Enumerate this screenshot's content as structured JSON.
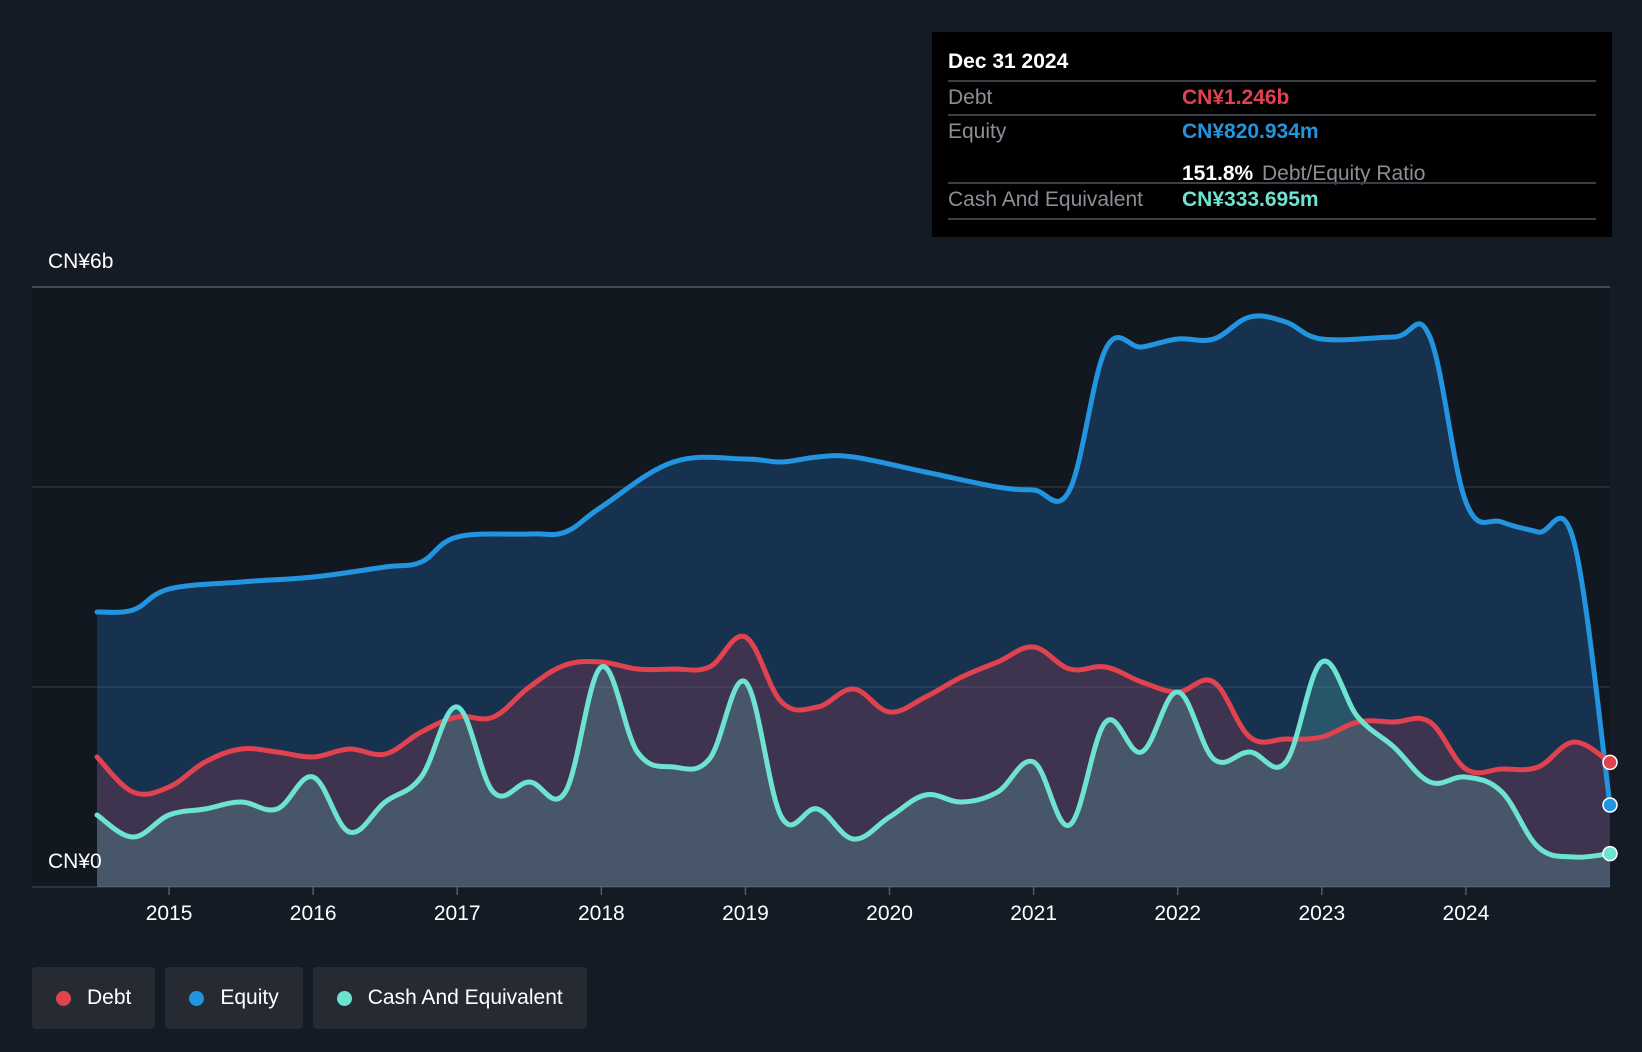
{
  "tooltip": {
    "date": "Dec 31 2024",
    "debt_label": "Debt",
    "debt_value": "CN¥1.246b",
    "equity_label": "Equity",
    "equity_value": "CN¥820.934m",
    "ratio_value": "151.8%",
    "ratio_label": "Debt/Equity Ratio",
    "cash_label": "Cash And Equivalent",
    "cash_value": "CN¥333.695m"
  },
  "legend": {
    "debt": "Debt",
    "equity": "Equity",
    "cash": "Cash And Equivalent"
  },
  "colors": {
    "debt": "#e0424f",
    "equity": "#2394df",
    "cash": "#6fe3d2",
    "background": "#151b24",
    "text_muted": "#8a8f96"
  },
  "chart_data": {
    "type": "area",
    "ylim": [
      0,
      6
    ],
    "y_unit": "CN¥ billions",
    "y_tick_labels": [
      "CN¥0",
      "CN¥6b"
    ],
    "x_tick_labels": [
      "2015",
      "2016",
      "2017",
      "2018",
      "2019",
      "2020",
      "2021",
      "2022",
      "2023",
      "2024"
    ],
    "xlim": [
      2014.5,
      2025.0
    ],
    "series": [
      {
        "name": "Equity",
        "points": [
          [
            2014.5,
            2.75
          ],
          [
            2014.75,
            2.77
          ],
          [
            2015.0,
            2.98
          ],
          [
            2015.5,
            3.05
          ],
          [
            2016.0,
            3.1
          ],
          [
            2016.5,
            3.2
          ],
          [
            2016.75,
            3.25
          ],
          [
            2017.0,
            3.5
          ],
          [
            2017.5,
            3.53
          ],
          [
            2017.75,
            3.55
          ],
          [
            2018.0,
            3.8
          ],
          [
            2018.5,
            4.25
          ],
          [
            2019.0,
            4.28
          ],
          [
            2019.25,
            4.25
          ],
          [
            2019.5,
            4.3
          ],
          [
            2019.75,
            4.3
          ],
          [
            2020.25,
            4.15
          ],
          [
            2020.75,
            4.0
          ],
          [
            2021.0,
            3.97
          ],
          [
            2021.25,
            3.97
          ],
          [
            2021.5,
            5.38
          ],
          [
            2021.75,
            5.4
          ],
          [
            2022.0,
            5.48
          ],
          [
            2022.25,
            5.48
          ],
          [
            2022.5,
            5.7
          ],
          [
            2022.75,
            5.65
          ],
          [
            2023.0,
            5.48
          ],
          [
            2023.5,
            5.5
          ],
          [
            2023.75,
            5.5
          ],
          [
            2024.0,
            3.85
          ],
          [
            2024.25,
            3.65
          ],
          [
            2024.5,
            3.55
          ],
          [
            2024.75,
            3.45
          ],
          [
            2025.0,
            0.82
          ]
        ]
      },
      {
        "name": "Debt",
        "points": [
          [
            2014.5,
            1.3
          ],
          [
            2014.75,
            0.95
          ],
          [
            2015.0,
            1.0
          ],
          [
            2015.25,
            1.25
          ],
          [
            2015.5,
            1.38
          ],
          [
            2015.75,
            1.35
          ],
          [
            2016.0,
            1.3
          ],
          [
            2016.25,
            1.38
          ],
          [
            2016.5,
            1.33
          ],
          [
            2016.75,
            1.55
          ],
          [
            2017.0,
            1.7
          ],
          [
            2017.25,
            1.7
          ],
          [
            2017.5,
            2.0
          ],
          [
            2017.75,
            2.22
          ],
          [
            2018.0,
            2.25
          ],
          [
            2018.25,
            2.18
          ],
          [
            2018.5,
            2.18
          ],
          [
            2018.75,
            2.2
          ],
          [
            2019.0,
            2.5
          ],
          [
            2019.25,
            1.85
          ],
          [
            2019.5,
            1.8
          ],
          [
            2019.75,
            1.98
          ],
          [
            2020.0,
            1.75
          ],
          [
            2020.25,
            1.9
          ],
          [
            2020.5,
            2.1
          ],
          [
            2020.75,
            2.25
          ],
          [
            2021.0,
            2.4
          ],
          [
            2021.25,
            2.18
          ],
          [
            2021.5,
            2.2
          ],
          [
            2021.75,
            2.05
          ],
          [
            2022.0,
            1.95
          ],
          [
            2022.25,
            2.05
          ],
          [
            2022.5,
            1.5
          ],
          [
            2022.75,
            1.48
          ],
          [
            2023.0,
            1.5
          ],
          [
            2023.25,
            1.65
          ],
          [
            2023.5,
            1.65
          ],
          [
            2023.75,
            1.65
          ],
          [
            2024.0,
            1.18
          ],
          [
            2024.25,
            1.18
          ],
          [
            2024.5,
            1.2
          ],
          [
            2024.75,
            1.45
          ],
          [
            2025.0,
            1.246
          ]
        ]
      },
      {
        "name": "Cash And Equivalent",
        "points": [
          [
            2014.5,
            0.72
          ],
          [
            2014.75,
            0.5
          ],
          [
            2015.0,
            0.72
          ],
          [
            2015.25,
            0.78
          ],
          [
            2015.5,
            0.85
          ],
          [
            2015.75,
            0.78
          ],
          [
            2016.0,
            1.1
          ],
          [
            2016.25,
            0.55
          ],
          [
            2016.5,
            0.85
          ],
          [
            2016.75,
            1.1
          ],
          [
            2017.0,
            1.8
          ],
          [
            2017.25,
            0.95
          ],
          [
            2017.5,
            1.05
          ],
          [
            2017.75,
            0.95
          ],
          [
            2018.0,
            2.2
          ],
          [
            2018.25,
            1.35
          ],
          [
            2018.5,
            1.2
          ],
          [
            2018.75,
            1.28
          ],
          [
            2019.0,
            2.05
          ],
          [
            2019.25,
            0.7
          ],
          [
            2019.5,
            0.78
          ],
          [
            2019.75,
            0.48
          ],
          [
            2020.0,
            0.7
          ],
          [
            2020.25,
            0.92
          ],
          [
            2020.5,
            0.85
          ],
          [
            2020.75,
            0.95
          ],
          [
            2021.0,
            1.25
          ],
          [
            2021.25,
            0.62
          ],
          [
            2021.5,
            1.65
          ],
          [
            2021.75,
            1.35
          ],
          [
            2022.0,
            1.95
          ],
          [
            2022.25,
            1.28
          ],
          [
            2022.5,
            1.35
          ],
          [
            2022.75,
            1.25
          ],
          [
            2023.0,
            2.25
          ],
          [
            2023.25,
            1.7
          ],
          [
            2023.5,
            1.4
          ],
          [
            2023.75,
            1.05
          ],
          [
            2024.0,
            1.1
          ],
          [
            2024.25,
            0.95
          ],
          [
            2024.5,
            0.4
          ],
          [
            2024.75,
            0.3
          ],
          [
            2025.0,
            0.334
          ]
        ]
      }
    ],
    "grid": true,
    "legend_position": "bottom-left"
  }
}
